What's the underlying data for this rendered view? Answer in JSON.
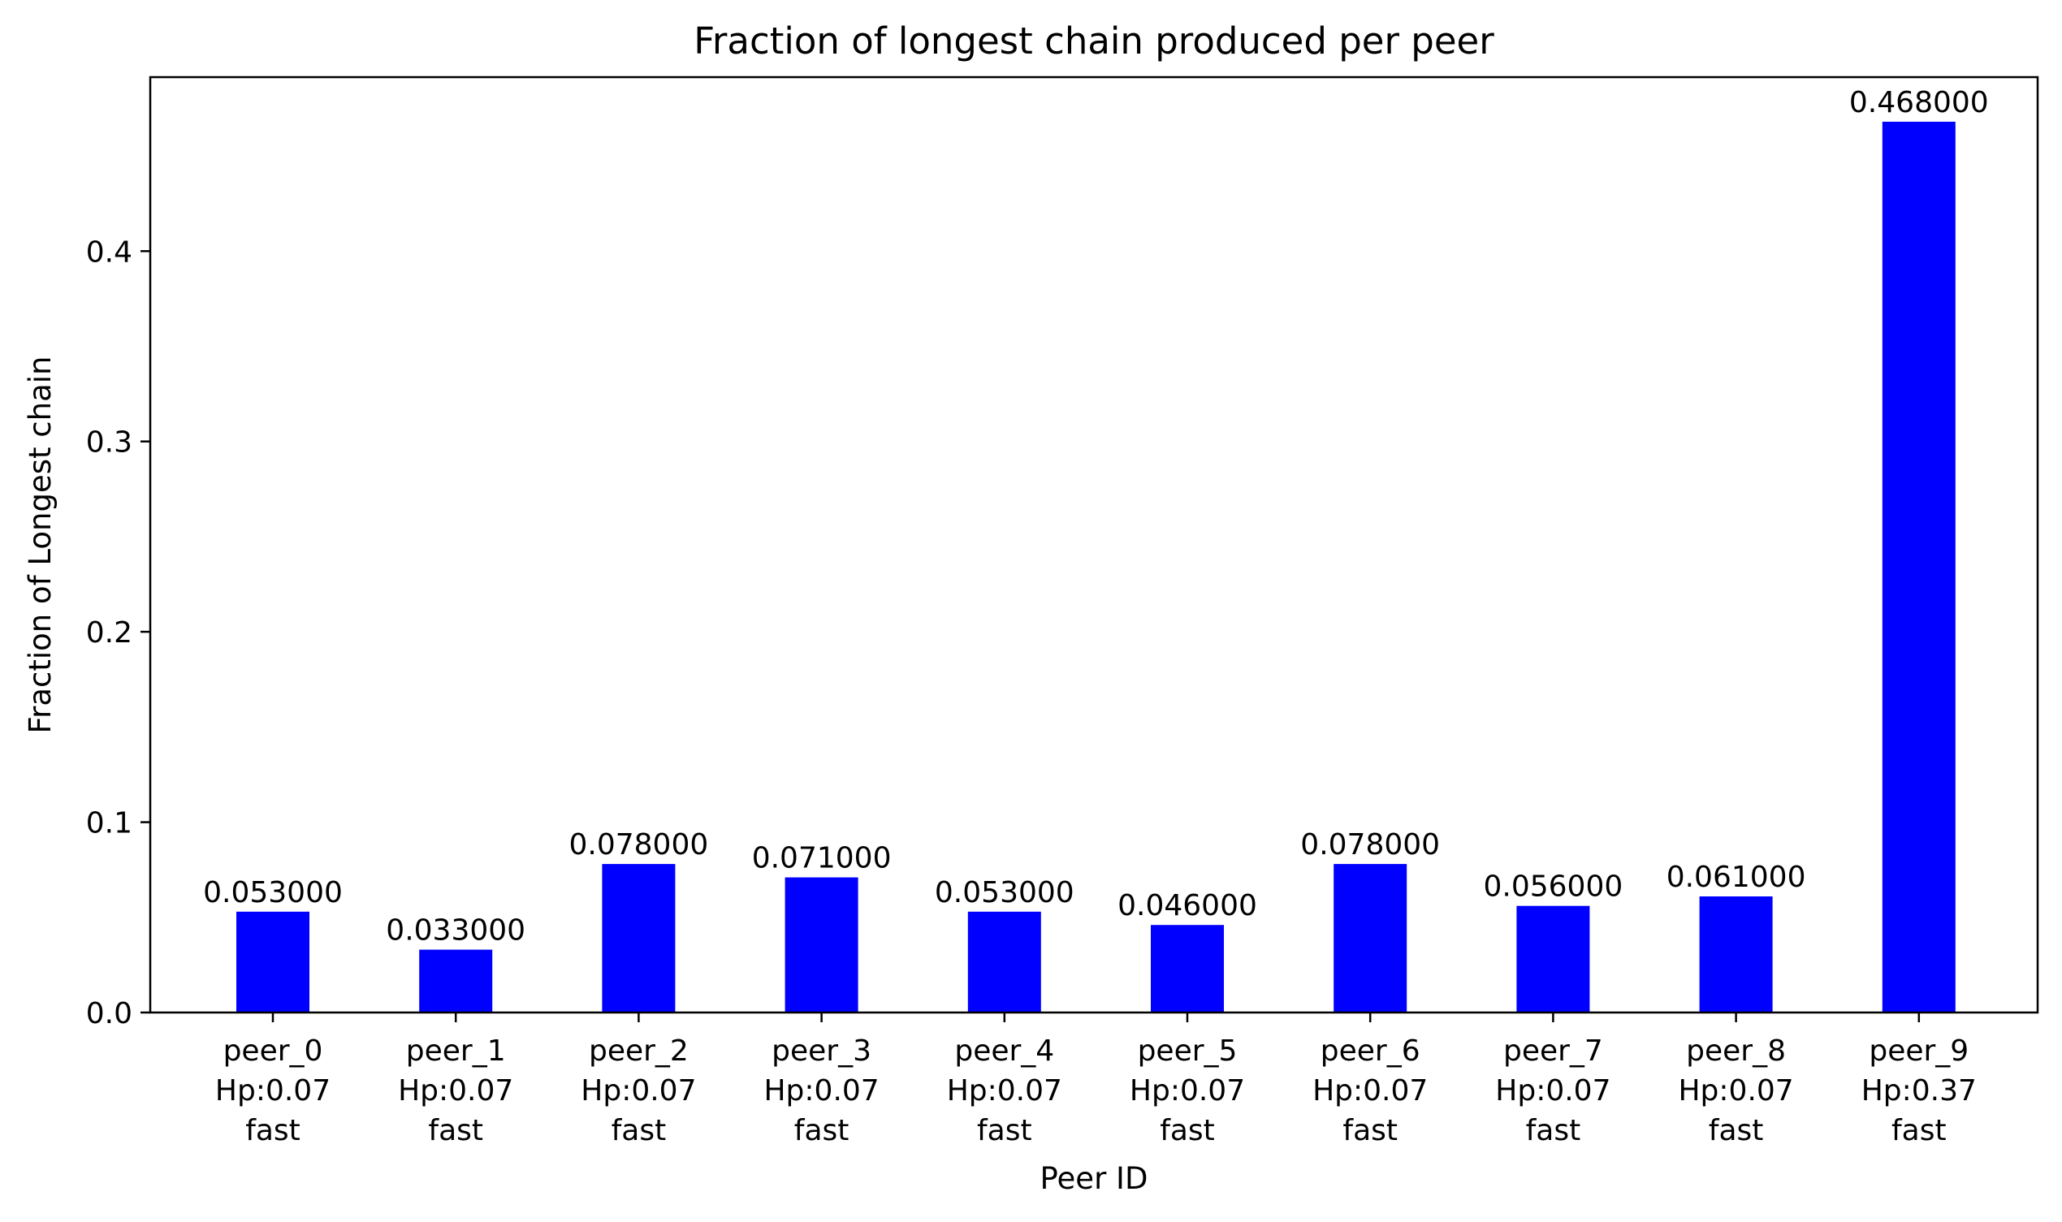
{
  "chart_data": {
    "type": "bar",
    "title": "Fraction of longest chain produced per peer",
    "xlabel": "Peer ID",
    "ylabel": "Fraction of Longest chain",
    "categories": [
      [
        "peer_0",
        "Hp:0.07",
        "fast"
      ],
      [
        "peer_1",
        "Hp:0.07",
        "fast"
      ],
      [
        "peer_2",
        "Hp:0.07",
        "fast"
      ],
      [
        "peer_3",
        "Hp:0.07",
        "fast"
      ],
      [
        "peer_4",
        "Hp:0.07",
        "fast"
      ],
      [
        "peer_5",
        "Hp:0.07",
        "fast"
      ],
      [
        "peer_6",
        "Hp:0.07",
        "fast"
      ],
      [
        "peer_7",
        "Hp:0.07",
        "fast"
      ],
      [
        "peer_8",
        "Hp:0.07",
        "fast"
      ],
      [
        "peer_9",
        "Hp:0.37",
        "fast"
      ]
    ],
    "values": [
      0.053,
      0.033,
      0.078,
      0.071,
      0.053,
      0.046,
      0.078,
      0.056,
      0.061,
      0.468
    ],
    "value_labels": [
      "0.053000",
      "0.033000",
      "0.078000",
      "0.071000",
      "0.053000",
      "0.046000",
      "0.078000",
      "0.056000",
      "0.061000",
      "0.468000"
    ],
    "yticks": [
      0.0,
      0.1,
      0.2,
      0.3,
      0.4
    ],
    "ytick_labels": [
      "0.0",
      "0.1",
      "0.2",
      "0.3",
      "0.4"
    ],
    "ylim": [
      0,
      0.4914
    ],
    "bar_color": "#0000ff",
    "grid": false,
    "legend": "none"
  }
}
